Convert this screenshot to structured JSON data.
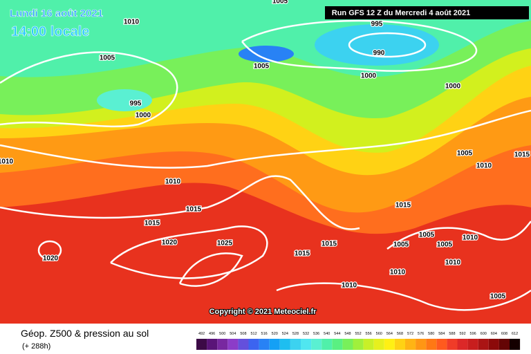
{
  "header": {
    "date": "Lundi 16 août 2021",
    "time": "14:00 locale"
  },
  "run": "Run GFS 12 Z du Mercredi 4 août 2021",
  "isobar_labels": [
    "1005",
    "1010",
    "1005",
    "995",
    "990",
    "1005",
    "1000",
    "1000",
    "995",
    "1000",
    "1010",
    "1005",
    "1010",
    "1015",
    "1010",
    "1015",
    "1015",
    "1015",
    "1020",
    "1025",
    "1015",
    "1005",
    "1005",
    "1005",
    "1010",
    "1015",
    "1020",
    "1010",
    "1010",
    "1010",
    "1005"
  ],
  "copyright": "Copyright © 2021 Meteociel.fr",
  "footer": {
    "title": "Géop. Z500 & pression au sol",
    "subtitle": "(+ 288h)"
  },
  "scale": {
    "labels": [
      492,
      496,
      500,
      504,
      508,
      512,
      516,
      520,
      524,
      528,
      532,
      536,
      540,
      544,
      548,
      552,
      556,
      560,
      564,
      568,
      572,
      576,
      580,
      584,
      588,
      592,
      596,
      600,
      604,
      608,
      612
    ],
    "colors": [
      "#3c0a46",
      "#5a1478",
      "#7828a0",
      "#8c3cc8",
      "#6450dc",
      "#3c64f0",
      "#2882f5",
      "#14a0f5",
      "#1ebef0",
      "#3cd2f0",
      "#50e6f0",
      "#5af0d2",
      "#50f0aa",
      "#5af082",
      "#78f05a",
      "#a0f03c",
      "#c8f028",
      "#e6f01e",
      "#fff014",
      "#ffd214",
      "#ffb414",
      "#ff9614",
      "#ff7814",
      "#ff5a1e",
      "#f03c28",
      "#dc2828",
      "#c81e1e",
      "#aa1414",
      "#8c0a0a",
      "#640505",
      "#140000"
    ]
  }
}
